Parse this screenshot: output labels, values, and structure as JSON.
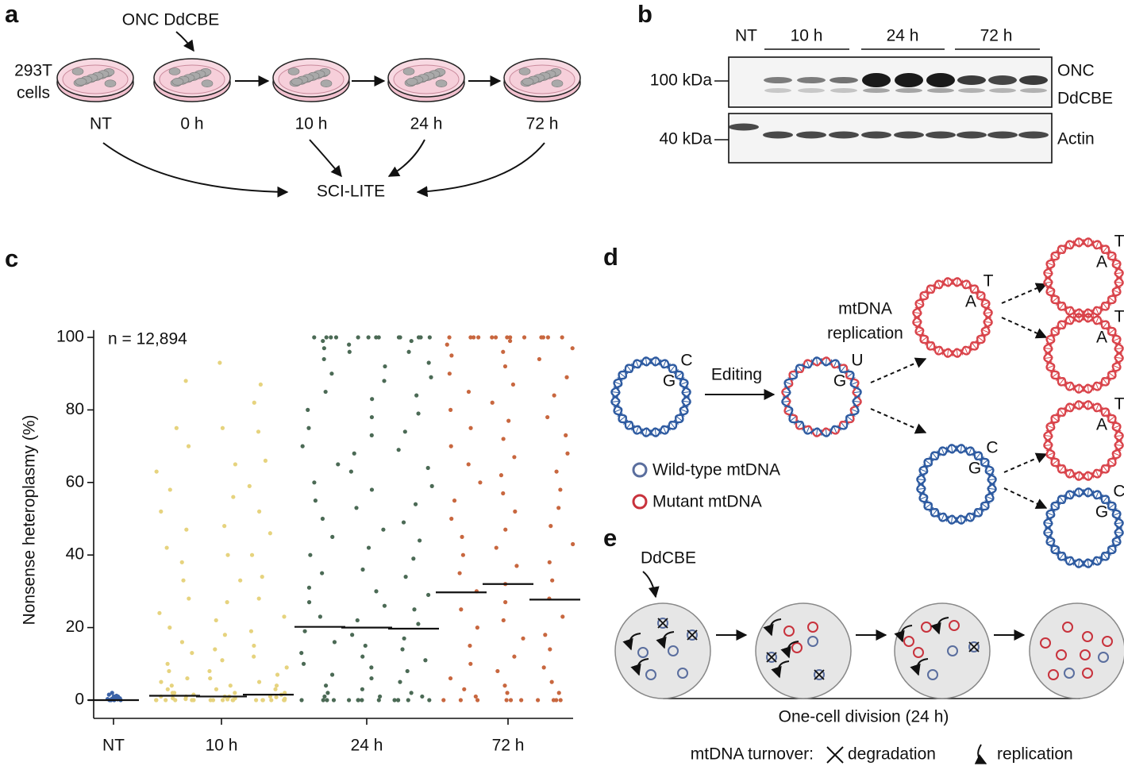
{
  "panel_a": {
    "label": "a",
    "treatment": "ONC DdCBE",
    "cells": [
      "293T",
      "cells"
    ],
    "timepoints": [
      "NT",
      "0 h",
      "10 h",
      "24 h",
      "72 h"
    ],
    "readout": "SCI-LITE"
  },
  "panel_b": {
    "label": "b",
    "lanes": [
      "NT",
      "10 h",
      "24 h",
      "72 h"
    ],
    "markers": [
      "100 kDa",
      "40 kDa"
    ],
    "bands": [
      "ONC",
      "DdCBE",
      "Actin"
    ]
  },
  "chart_data": {
    "type": "strip",
    "label": "c",
    "ylabel": "Nonsense heteroplasmy (%)",
    "annotation": "n = 12,894",
    "ylim": [
      -5,
      102
    ],
    "yticks": [
      0,
      20,
      40,
      60,
      80,
      100
    ],
    "series": [
      {
        "name": "NT",
        "color": "#3b63a8",
        "replicates": [
          {
            "median": 0,
            "values": [
              0,
              0,
              0,
              0,
              0.2,
              0.3,
              0.5,
              0.5,
              0.8,
              1,
              1,
              1.2,
              1.5,
              2,
              0.1,
              0.4
            ]
          }
        ]
      },
      {
        "name": "10 h",
        "color": "#e6d37e",
        "replicates": [
          {
            "median": 1.2,
            "values": [
              0,
              0,
              0,
              0,
              0,
              0,
              0.3,
              0.5,
              1,
              1,
              1.5,
              2,
              2,
              3,
              4,
              5,
              6,
              8,
              10,
              13,
              16,
              20,
              24,
              28,
              33,
              38,
              42,
              47,
              52,
              58,
              63,
              70,
              75,
              88
            ]
          },
          {
            "median": 1.0,
            "values": [
              0,
              0,
              0,
              0,
              0,
              0.2,
              0.5,
              1,
              1,
              2,
              3,
              4,
              6,
              8,
              11,
              14,
              18,
              22,
              27,
              33,
              40,
              48,
              56,
              65,
              75,
              93
            ]
          },
          {
            "median": 1.5,
            "values": [
              0,
              0,
              0,
              0,
              0,
              0,
              0.4,
              0.8,
              1,
              1.5,
              2,
              3,
              4,
              5,
              7,
              9,
              12,
              15,
              19,
              23,
              28,
              34,
              40,
              46,
              52,
              59,
              66,
              74,
              82,
              87
            ]
          }
        ]
      },
      {
        "name": "24 h",
        "color": "#4b6a55",
        "replicates": [
          {
            "median": 20.2,
            "values": [
              0,
              0,
              0,
              0,
              1,
              2,
              4,
              7,
              10,
              13,
              16,
              19,
              23,
              27,
              31,
              35,
              40,
              45,
              50,
              55,
              60,
              65,
              70,
              75,
              80,
              85,
              90,
              94,
              97,
              99,
              100,
              100,
              100,
              100
            ]
          },
          {
            "median": 20.0,
            "values": [
              0,
              0,
              0,
              0,
              0,
              1,
              3,
              6,
              9,
              12,
              15,
              18,
              22,
              26,
              30,
              36,
              42,
              47,
              53,
              58,
              63,
              68,
              73,
              78,
              83,
              88,
              92,
              96,
              98,
              100,
              100,
              100,
              100
            ]
          },
          {
            "median": 19.7,
            "values": [
              0,
              0,
              0,
              0,
              0,
              1,
              2,
              5,
              8,
              11,
              14,
              17,
              21,
              25,
              29,
              34,
              39,
              44,
              49,
              54,
              59,
              64,
              69,
              74,
              79,
              84,
              89,
              93,
              96,
              99,
              100,
              100,
              100,
              100,
              100
            ]
          }
        ]
      },
      {
        "name": "72 h",
        "color": "#c8673f",
        "replicates": [
          {
            "median": 29.7,
            "values": [
              0,
              0,
              0,
              1,
              3,
              6,
              10,
              15,
              20,
              25,
              30,
              35,
              40,
              45,
              50,
              55,
              60,
              65,
              70,
              75,
              80,
              85,
              90,
              95,
              98,
              100,
              100,
              100,
              100
            ]
          },
          {
            "median": 32.0,
            "values": [
              0,
              0,
              0,
              2,
              4,
              8,
              12,
              17,
              22,
              27,
              32,
              37,
              42,
              47,
              52,
              57,
              62,
              67,
              72,
              77,
              82,
              87,
              92,
              96,
              99,
              100,
              100,
              100,
              100,
              100
            ]
          },
          {
            "median": 27.7,
            "values": [
              0,
              0,
              0,
              0,
              2,
              5,
              9,
              14,
              18,
              23,
              28,
              33,
              38,
              43,
              48,
              53,
              58,
              63,
              68,
              73,
              78,
              84,
              89,
              94,
              97,
              100,
              100,
              100,
              100
            ]
          }
        ]
      }
    ]
  },
  "panel_d": {
    "label": "d",
    "step": "Editing",
    "process": [
      "mtDNA",
      "replication"
    ],
    "legend": [
      "Wild-type mtDNA",
      "Mutant mtDNA"
    ],
    "wild_bases": [
      "C",
      "G"
    ],
    "edited_bases": [
      "U",
      "G"
    ],
    "mutant_bases": [
      "T",
      "A"
    ]
  },
  "panel_e": {
    "label": "e",
    "editor": "DdCBE",
    "span": "One-cell division (24 h)",
    "turnover": "mtDNA turnover:",
    "degradation": "degradation",
    "replication": "replication"
  }
}
